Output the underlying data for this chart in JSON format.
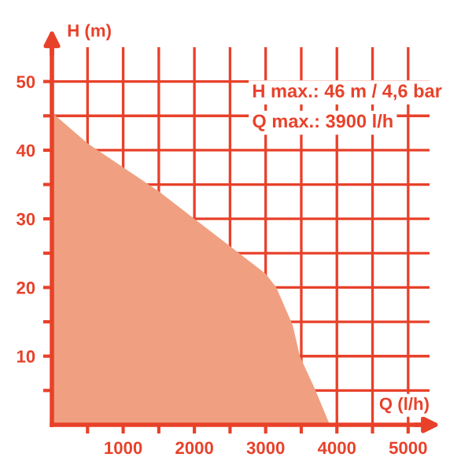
{
  "chart_data": {
    "type": "area",
    "xlabel": "Q (l/h)",
    "ylabel": "H (m)",
    "annotations": [
      "H max.: 46 m / 4,6 bar",
      "Q max.: 3900 l/h"
    ],
    "series": [
      {
        "color": "#f0a080",
        "x": [
          0,
          500,
          1000,
          1500,
          2000,
          2500,
          3000,
          3150,
          3380,
          3480,
          3700,
          3900
        ],
        "values": [
          45.5,
          41,
          37.5,
          34,
          30,
          26,
          22,
          20,
          14.5,
          10,
          5,
          0
        ]
      }
    ],
    "xlim": [
      0,
      5300
    ],
    "ylim": [
      0,
      55
    ],
    "xticks": [
      {
        "value": 500,
        "label": null
      },
      1000,
      {
        "value": 1500,
        "label": null
      },
      2000,
      {
        "value": 2500,
        "label": null
      },
      3000,
      {
        "value": 3500,
        "label": null
      },
      4000,
      {
        "value": 4500,
        "label": null
      },
      5000
    ],
    "yticks": [
      {
        "value": 5,
        "label": null
      },
      10,
      {
        "value": 15,
        "label": null
      },
      20,
      {
        "value": 25,
        "label": null
      },
      30,
      {
        "value": 35,
        "label": null
      },
      40,
      {
        "value": 45,
        "label": null
      },
      50
    ],
    "grid": true
  }
}
